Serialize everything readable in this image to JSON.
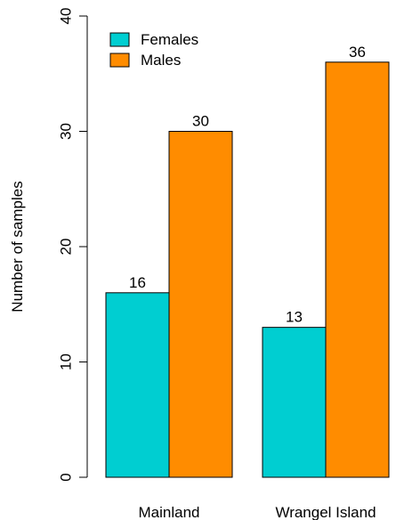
{
  "chart_data": {
    "type": "bar",
    "categories": [
      "Mainland",
      "Wrangel Island"
    ],
    "series": [
      {
        "name": "Females",
        "values": [
          16,
          13
        ],
        "color": "#00CED1"
      },
      {
        "name": "Males",
        "values": [
          30,
          36
        ],
        "color": "#FF8C00"
      }
    ],
    "ylabel": "Number of samples",
    "ylim": [
      0,
      40
    ],
    "yticks": [
      0,
      10,
      20,
      30,
      40
    ],
    "legend_position": "top-left",
    "grid": false
  }
}
